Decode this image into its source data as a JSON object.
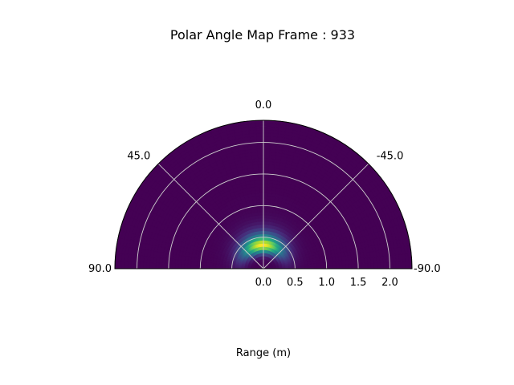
{
  "chart_data": {
    "type": "heatmap",
    "projection": "polar-half",
    "title": "Polar Angle Map Frame : 933",
    "xlabel": "Range (m)",
    "angle_ticks": [
      {
        "value": 90,
        "label": "90.0"
      },
      {
        "value": 45,
        "label": "45.0"
      },
      {
        "value": 0,
        "label": "0.0"
      },
      {
        "value": -45,
        "label": "-45.0"
      },
      {
        "value": -90,
        "label": "-90.0"
      }
    ],
    "range_ticks": [
      {
        "value": 0.0,
        "label": "0.0"
      },
      {
        "value": 0.5,
        "label": "0.5"
      },
      {
        "value": 1.0,
        "label": "1.0"
      },
      {
        "value": 1.5,
        "label": "1.5"
      },
      {
        "value": 2.0,
        "label": "2.0"
      }
    ],
    "range_lim": [
      0,
      2.35
    ],
    "angle_lim": [
      -90,
      90
    ],
    "colormap": "viridis",
    "grid": true,
    "intensity_peak": {
      "angle_deg": 3,
      "range_m": 0.38
    },
    "colors": {
      "frame": "#000000",
      "grid": "#cfcfcf",
      "background": "#440154"
    }
  }
}
